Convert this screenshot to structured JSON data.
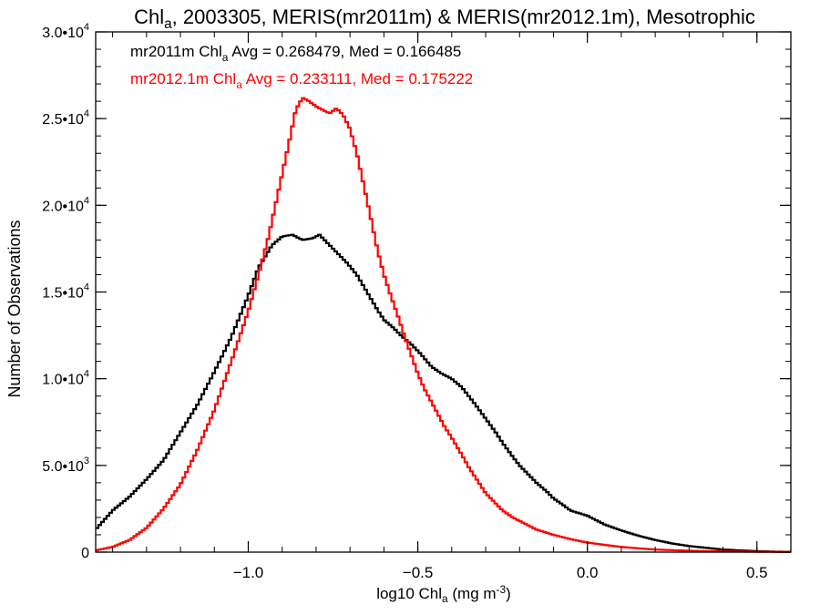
{
  "chart_data": {
    "type": "line",
    "title": {
      "main": "Chl",
      "main_sub": "a",
      "rest": ", 2003305, MERIS(mr2011m) & MERIS(mr2012.1m), Mesotrophic"
    },
    "xlabel": {
      "pre": "log10 Chl",
      "sub": "a",
      "post": " (mg m",
      "sup": "-3",
      "end": ")"
    },
    "ylabel": "Number of Observations",
    "xlim": [
      -1.45,
      0.6
    ],
    "ylim": [
      0,
      30000
    ],
    "x_ticks": [
      {
        "value": -1.0,
        "label": "−1.0"
      },
      {
        "value": -0.5,
        "label": "−0.5"
      },
      {
        "value": 0.0,
        "label": "0.0"
      },
      {
        "value": 0.5,
        "label": "0.5"
      }
    ],
    "y_ticks": [
      {
        "value": 0,
        "mant": "0",
        "exp": ""
      },
      {
        "value": 5000,
        "mant": "5.0•10",
        "exp": "3"
      },
      {
        "value": 10000,
        "mant": "1.0•10",
        "exp": "4"
      },
      {
        "value": 15000,
        "mant": "1.5•10",
        "exp": "4"
      },
      {
        "value": 20000,
        "mant": "2.0•10",
        "exp": "4"
      },
      {
        "value": 25000,
        "mant": "2.5•10",
        "exp": "4"
      },
      {
        "value": 30000,
        "mant": "3.0•10",
        "exp": "4"
      }
    ],
    "legend": [
      {
        "pre": "mr2011m Chl",
        "sub": "a",
        "post": " Avg = 0.268479, Med = 0.166485",
        "color": "#000000"
      },
      {
        "pre": "mr2012.1m Chl",
        "sub": "a",
        "post": " Avg = 0.233111, Med = 0.175222",
        "color": "#ff0000"
      }
    ],
    "legend_position": "top-left",
    "series": [
      {
        "color": "#000000",
        "points": [
          [
            -1.45,
            1300
          ],
          [
            -1.4,
            2400
          ],
          [
            -1.35,
            3200
          ],
          [
            -1.3,
            4200
          ],
          [
            -1.25,
            5300
          ],
          [
            -1.2,
            6900
          ],
          [
            -1.15,
            8500
          ],
          [
            -1.1,
            10400
          ],
          [
            -1.05,
            12400
          ],
          [
            -1.0,
            14800
          ],
          [
            -0.97,
            16400
          ],
          [
            -0.93,
            17700
          ],
          [
            -0.9,
            18200
          ],
          [
            -0.87,
            18300
          ],
          [
            -0.84,
            18000
          ],
          [
            -0.81,
            18100
          ],
          [
            -0.79,
            18300
          ],
          [
            -0.77,
            17900
          ],
          [
            -0.74,
            17300
          ],
          [
            -0.71,
            16700
          ],
          [
            -0.68,
            16000
          ],
          [
            -0.65,
            15000
          ],
          [
            -0.62,
            14000
          ],
          [
            -0.6,
            13400
          ],
          [
            -0.57,
            12900
          ],
          [
            -0.55,
            12500
          ],
          [
            -0.52,
            12000
          ],
          [
            -0.49,
            11400
          ],
          [
            -0.46,
            10700
          ],
          [
            -0.43,
            10300
          ],
          [
            -0.4,
            10000
          ],
          [
            -0.37,
            9500
          ],
          [
            -0.35,
            9000
          ],
          [
            -0.33,
            8500
          ],
          [
            -0.3,
            7700
          ],
          [
            -0.27,
            6900
          ],
          [
            -0.25,
            6300
          ],
          [
            -0.22,
            5500
          ],
          [
            -0.2,
            5000
          ],
          [
            -0.17,
            4400
          ],
          [
            -0.15,
            4000
          ],
          [
            -0.12,
            3500
          ],
          [
            -0.1,
            3100
          ],
          [
            -0.07,
            2700
          ],
          [
            -0.05,
            2400
          ],
          [
            0.0,
            2100
          ],
          [
            0.05,
            1600
          ],
          [
            0.1,
            1250
          ],
          [
            0.15,
            950
          ],
          [
            0.2,
            700
          ],
          [
            0.25,
            500
          ],
          [
            0.3,
            350
          ],
          [
            0.35,
            250
          ],
          [
            0.4,
            150
          ],
          [
            0.45,
            100
          ],
          [
            0.5,
            60
          ],
          [
            0.55,
            30
          ],
          [
            0.6,
            20
          ]
        ]
      },
      {
        "color": "#ff0000",
        "points": [
          [
            -1.45,
            100
          ],
          [
            -1.4,
            300
          ],
          [
            -1.35,
            700
          ],
          [
            -1.3,
            1400
          ],
          [
            -1.25,
            2500
          ],
          [
            -1.2,
            3900
          ],
          [
            -1.15,
            5900
          ],
          [
            -1.1,
            8200
          ],
          [
            -1.05,
            11000
          ],
          [
            -1.0,
            13900
          ],
          [
            -0.97,
            16000
          ],
          [
            -0.94,
            18200
          ],
          [
            -0.92,
            20000
          ],
          [
            -0.9,
            21800
          ],
          [
            -0.88,
            23600
          ],
          [
            -0.86,
            25500
          ],
          [
            -0.84,
            26200
          ],
          [
            -0.82,
            26000
          ],
          [
            -0.8,
            25700
          ],
          [
            -0.78,
            25500
          ],
          [
            -0.76,
            25300
          ],
          [
            -0.74,
            25600
          ],
          [
            -0.72,
            25200
          ],
          [
            -0.7,
            24400
          ],
          [
            -0.68,
            23000
          ],
          [
            -0.66,
            21200
          ],
          [
            -0.64,
            19400
          ],
          [
            -0.62,
            17500
          ],
          [
            -0.6,
            16000
          ],
          [
            -0.58,
            14800
          ],
          [
            -0.56,
            13700
          ],
          [
            -0.54,
            12500
          ],
          [
            -0.52,
            11400
          ],
          [
            -0.5,
            10300
          ],
          [
            -0.48,
            9400
          ],
          [
            -0.45,
            8300
          ],
          [
            -0.42,
            7200
          ],
          [
            -0.4,
            6600
          ],
          [
            -0.37,
            5600
          ],
          [
            -0.35,
            4900
          ],
          [
            -0.32,
            4000
          ],
          [
            -0.3,
            3400
          ],
          [
            -0.27,
            2800
          ],
          [
            -0.25,
            2400
          ],
          [
            -0.22,
            2000
          ],
          [
            -0.2,
            1800
          ],
          [
            -0.17,
            1500
          ],
          [
            -0.15,
            1300
          ],
          [
            -0.1,
            1000
          ],
          [
            -0.05,
            750
          ],
          [
            0.0,
            550
          ],
          [
            0.05,
            420
          ],
          [
            0.1,
            300
          ],
          [
            0.15,
            220
          ],
          [
            0.2,
            150
          ],
          [
            0.3,
            80
          ],
          [
            0.4,
            40
          ],
          [
            0.5,
            20
          ],
          [
            0.6,
            10
          ]
        ]
      }
    ]
  }
}
